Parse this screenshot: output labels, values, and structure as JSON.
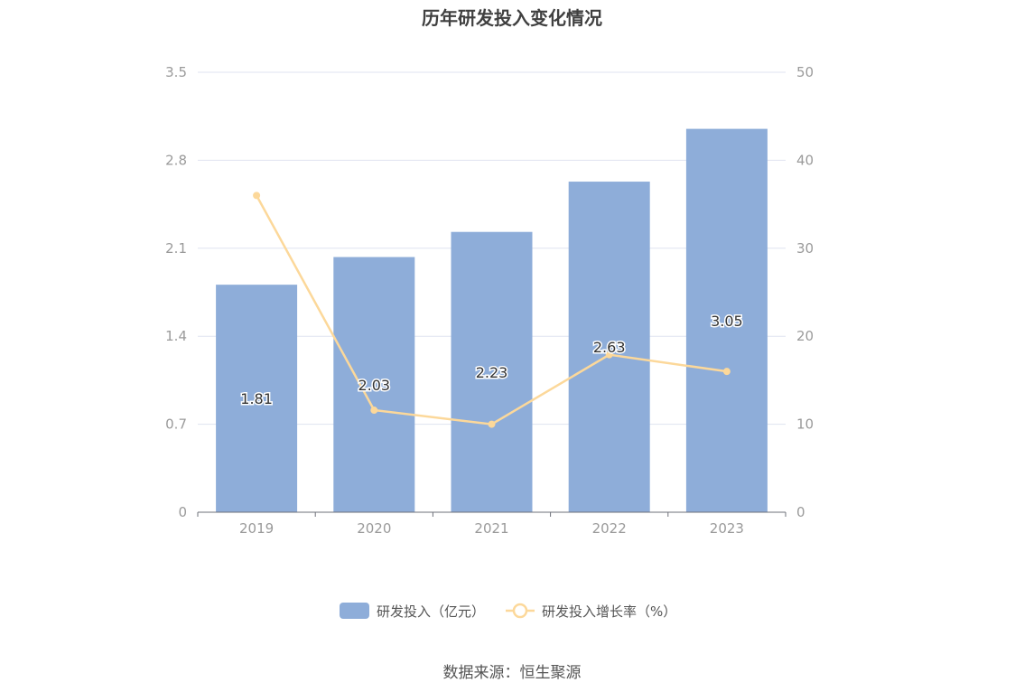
{
  "title": "历年研发投入变化情况",
  "source_text": "数据来源：恒生聚源",
  "colors": {
    "bar": "#8eadd9",
    "line": "#fcd89a",
    "grid": "#dfe3f0",
    "axis": "#6e7079",
    "tick_text": "#9a9a9a",
    "label_text": "#333333"
  },
  "chart_data": {
    "type": "bar",
    "categories": [
      "2019",
      "2020",
      "2021",
      "2022",
      "2023"
    ],
    "series": [
      {
        "name": "研发投入（亿元）",
        "type": "bar",
        "axis": "left",
        "values": [
          1.81,
          2.03,
          2.23,
          2.63,
          3.05
        ],
        "labels": [
          "1.81",
          "2.03",
          "2.23",
          "2.63",
          "3.05"
        ]
      },
      {
        "name": "研发投入增长率（%）",
        "type": "line",
        "axis": "right",
        "values": [
          36.0,
          11.6,
          10.0,
          17.9,
          16.0
        ]
      }
    ],
    "y_left": {
      "ylim": [
        0,
        3.5
      ],
      "ticks": [
        "0",
        "0.7",
        "1.4",
        "2.1",
        "2.8",
        "3.5"
      ],
      "tick_values": [
        0,
        0.7,
        1.4,
        2.1,
        2.8,
        3.5
      ]
    },
    "y_right": {
      "ylim": [
        0,
        50
      ],
      "ticks": [
        "0",
        "10",
        "20",
        "30",
        "40",
        "50"
      ],
      "tick_values": [
        0,
        10,
        20,
        30,
        40,
        50
      ]
    },
    "grid": true,
    "legend_position": "bottom"
  }
}
